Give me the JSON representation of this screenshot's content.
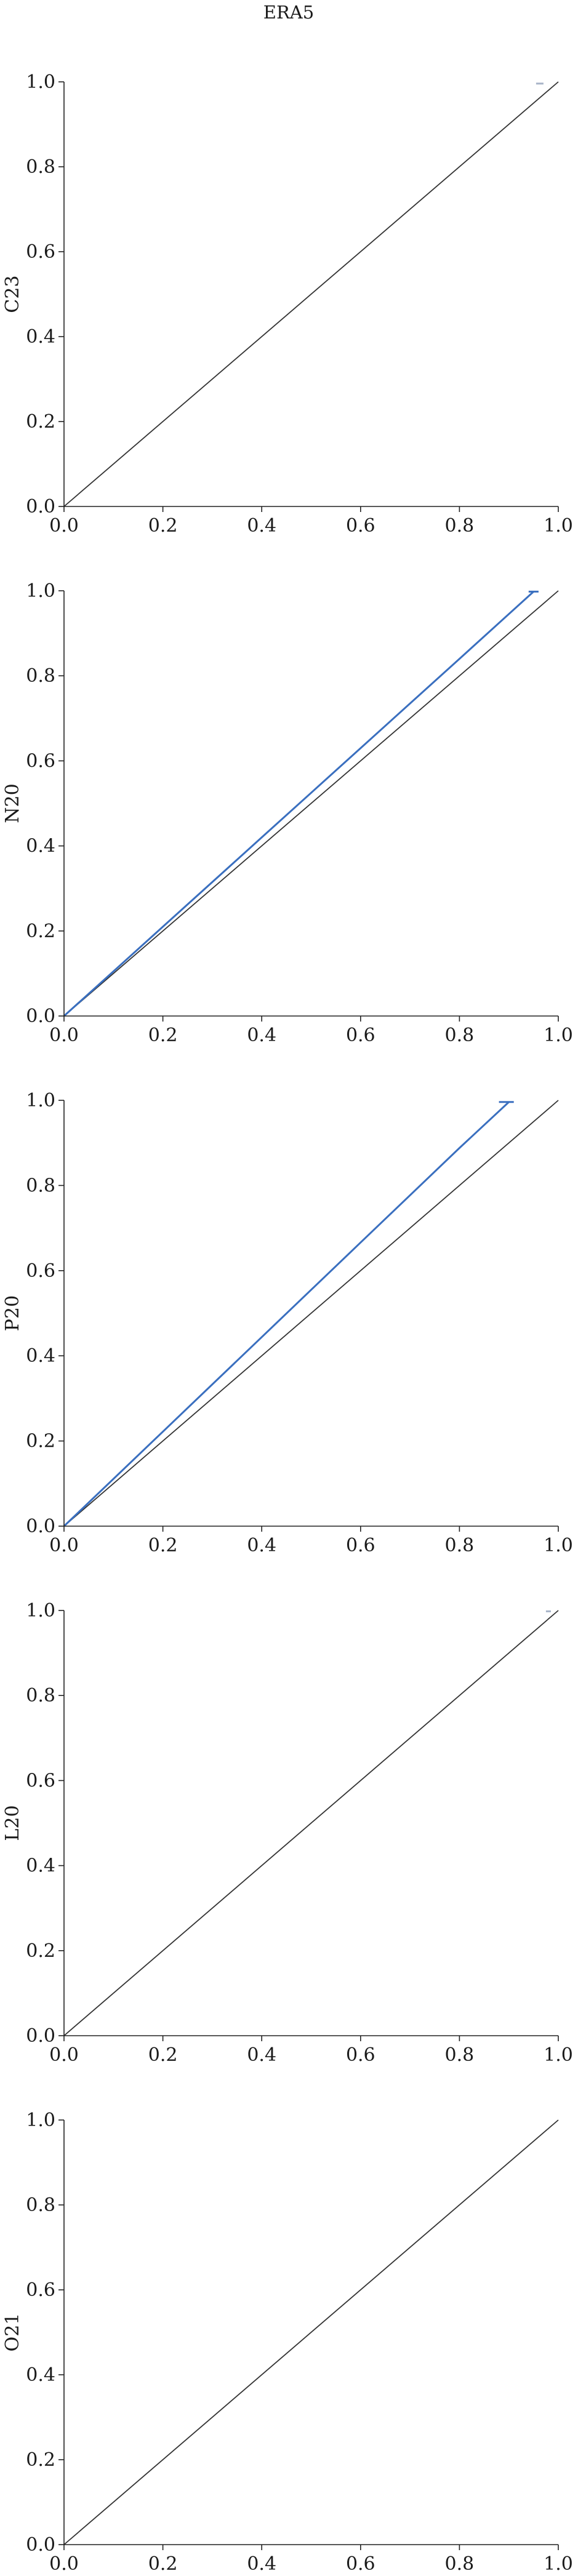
{
  "chart_data": {
    "title": "ERA5",
    "type": "line",
    "subplots": [
      {
        "ylabel": "C23",
        "xlim": [
          0,
          1
        ],
        "ylim": [
          0,
          1
        ],
        "xticks": [
          "0.0",
          "0.2",
          "0.4",
          "0.6",
          "0.8",
          "1.0"
        ],
        "yticks": [
          "0.0",
          "0.2",
          "0.4",
          "0.6",
          "0.8",
          "1.0"
        ],
        "reference": {
          "x": [
            0,
            1
          ],
          "y": [
            0,
            1
          ],
          "color": "#333333"
        },
        "series": [
          {
            "x": [
              0.955,
              0.97
            ],
            "y": [
              0.996,
              0.996
            ],
            "color": "#a8b4c8"
          }
        ]
      },
      {
        "ylabel": "N20",
        "xlim": [
          0,
          1
        ],
        "ylim": [
          0,
          1
        ],
        "xticks": [
          "0.0",
          "0.2",
          "0.4",
          "0.6",
          "0.8",
          "1.0"
        ],
        "yticks": [
          "0.0",
          "0.2",
          "0.4",
          "0.6",
          "0.8",
          "1.0"
        ],
        "reference": {
          "x": [
            0,
            1
          ],
          "y": [
            0,
            1
          ],
          "color": "#333333"
        },
        "series": [
          {
            "x": [
              0,
              0.2,
              0.4,
              0.6,
              0.8,
              0.95,
              0.96,
              0.94
            ],
            "y": [
              0,
              0.21,
              0.42,
              0.63,
              0.84,
              0.998,
              0.998,
              0.998
            ],
            "color": "#3a6fbf"
          }
        ]
      },
      {
        "ylabel": "P20",
        "xlim": [
          0,
          1
        ],
        "ylim": [
          0,
          1
        ],
        "xticks": [
          "0.0",
          "0.2",
          "0.4",
          "0.6",
          "0.8",
          "1.0"
        ],
        "yticks": [
          "0.0",
          "0.2",
          "0.4",
          "0.6",
          "0.8",
          "1.0"
        ],
        "reference": {
          "x": [
            0,
            1
          ],
          "y": [
            0,
            1
          ],
          "color": "#333333"
        },
        "series": [
          {
            "x": [
              0,
              0.2,
              0.4,
              0.6,
              0.8,
              0.9,
              0.91,
              0.88
            ],
            "y": [
              0,
              0.222,
              0.444,
              0.666,
              0.888,
              0.996,
              0.996,
              0.996
            ],
            "color": "#3a6fbf"
          }
        ]
      },
      {
        "ylabel": "L20",
        "xlim": [
          0,
          1
        ],
        "ylim": [
          0,
          1
        ],
        "xticks": [
          "0.0",
          "0.2",
          "0.4",
          "0.6",
          "0.8",
          "1.0"
        ],
        "yticks": [
          "0.0",
          "0.2",
          "0.4",
          "0.6",
          "0.8",
          "1.0"
        ],
        "reference": {
          "x": [
            0,
            1
          ],
          "y": [
            0,
            1
          ],
          "color": "#333333"
        },
        "series": [
          {
            "x": [
              0.975,
              0.985
            ],
            "y": [
              0.998,
              0.998
            ],
            "color": "#a8b4c8"
          }
        ]
      },
      {
        "ylabel": "O21",
        "xlim": [
          0,
          1
        ],
        "ylim": [
          0,
          1
        ],
        "xticks": [
          "0.0",
          "0.2",
          "0.4",
          "0.6",
          "0.8",
          "1.0"
        ],
        "yticks": [
          "0.0",
          "0.2",
          "0.4",
          "0.6",
          "0.8",
          "1.0"
        ],
        "reference": {
          "x": [
            0,
            1
          ],
          "y": [
            0,
            1
          ],
          "color": "#333333"
        },
        "series": []
      }
    ]
  }
}
